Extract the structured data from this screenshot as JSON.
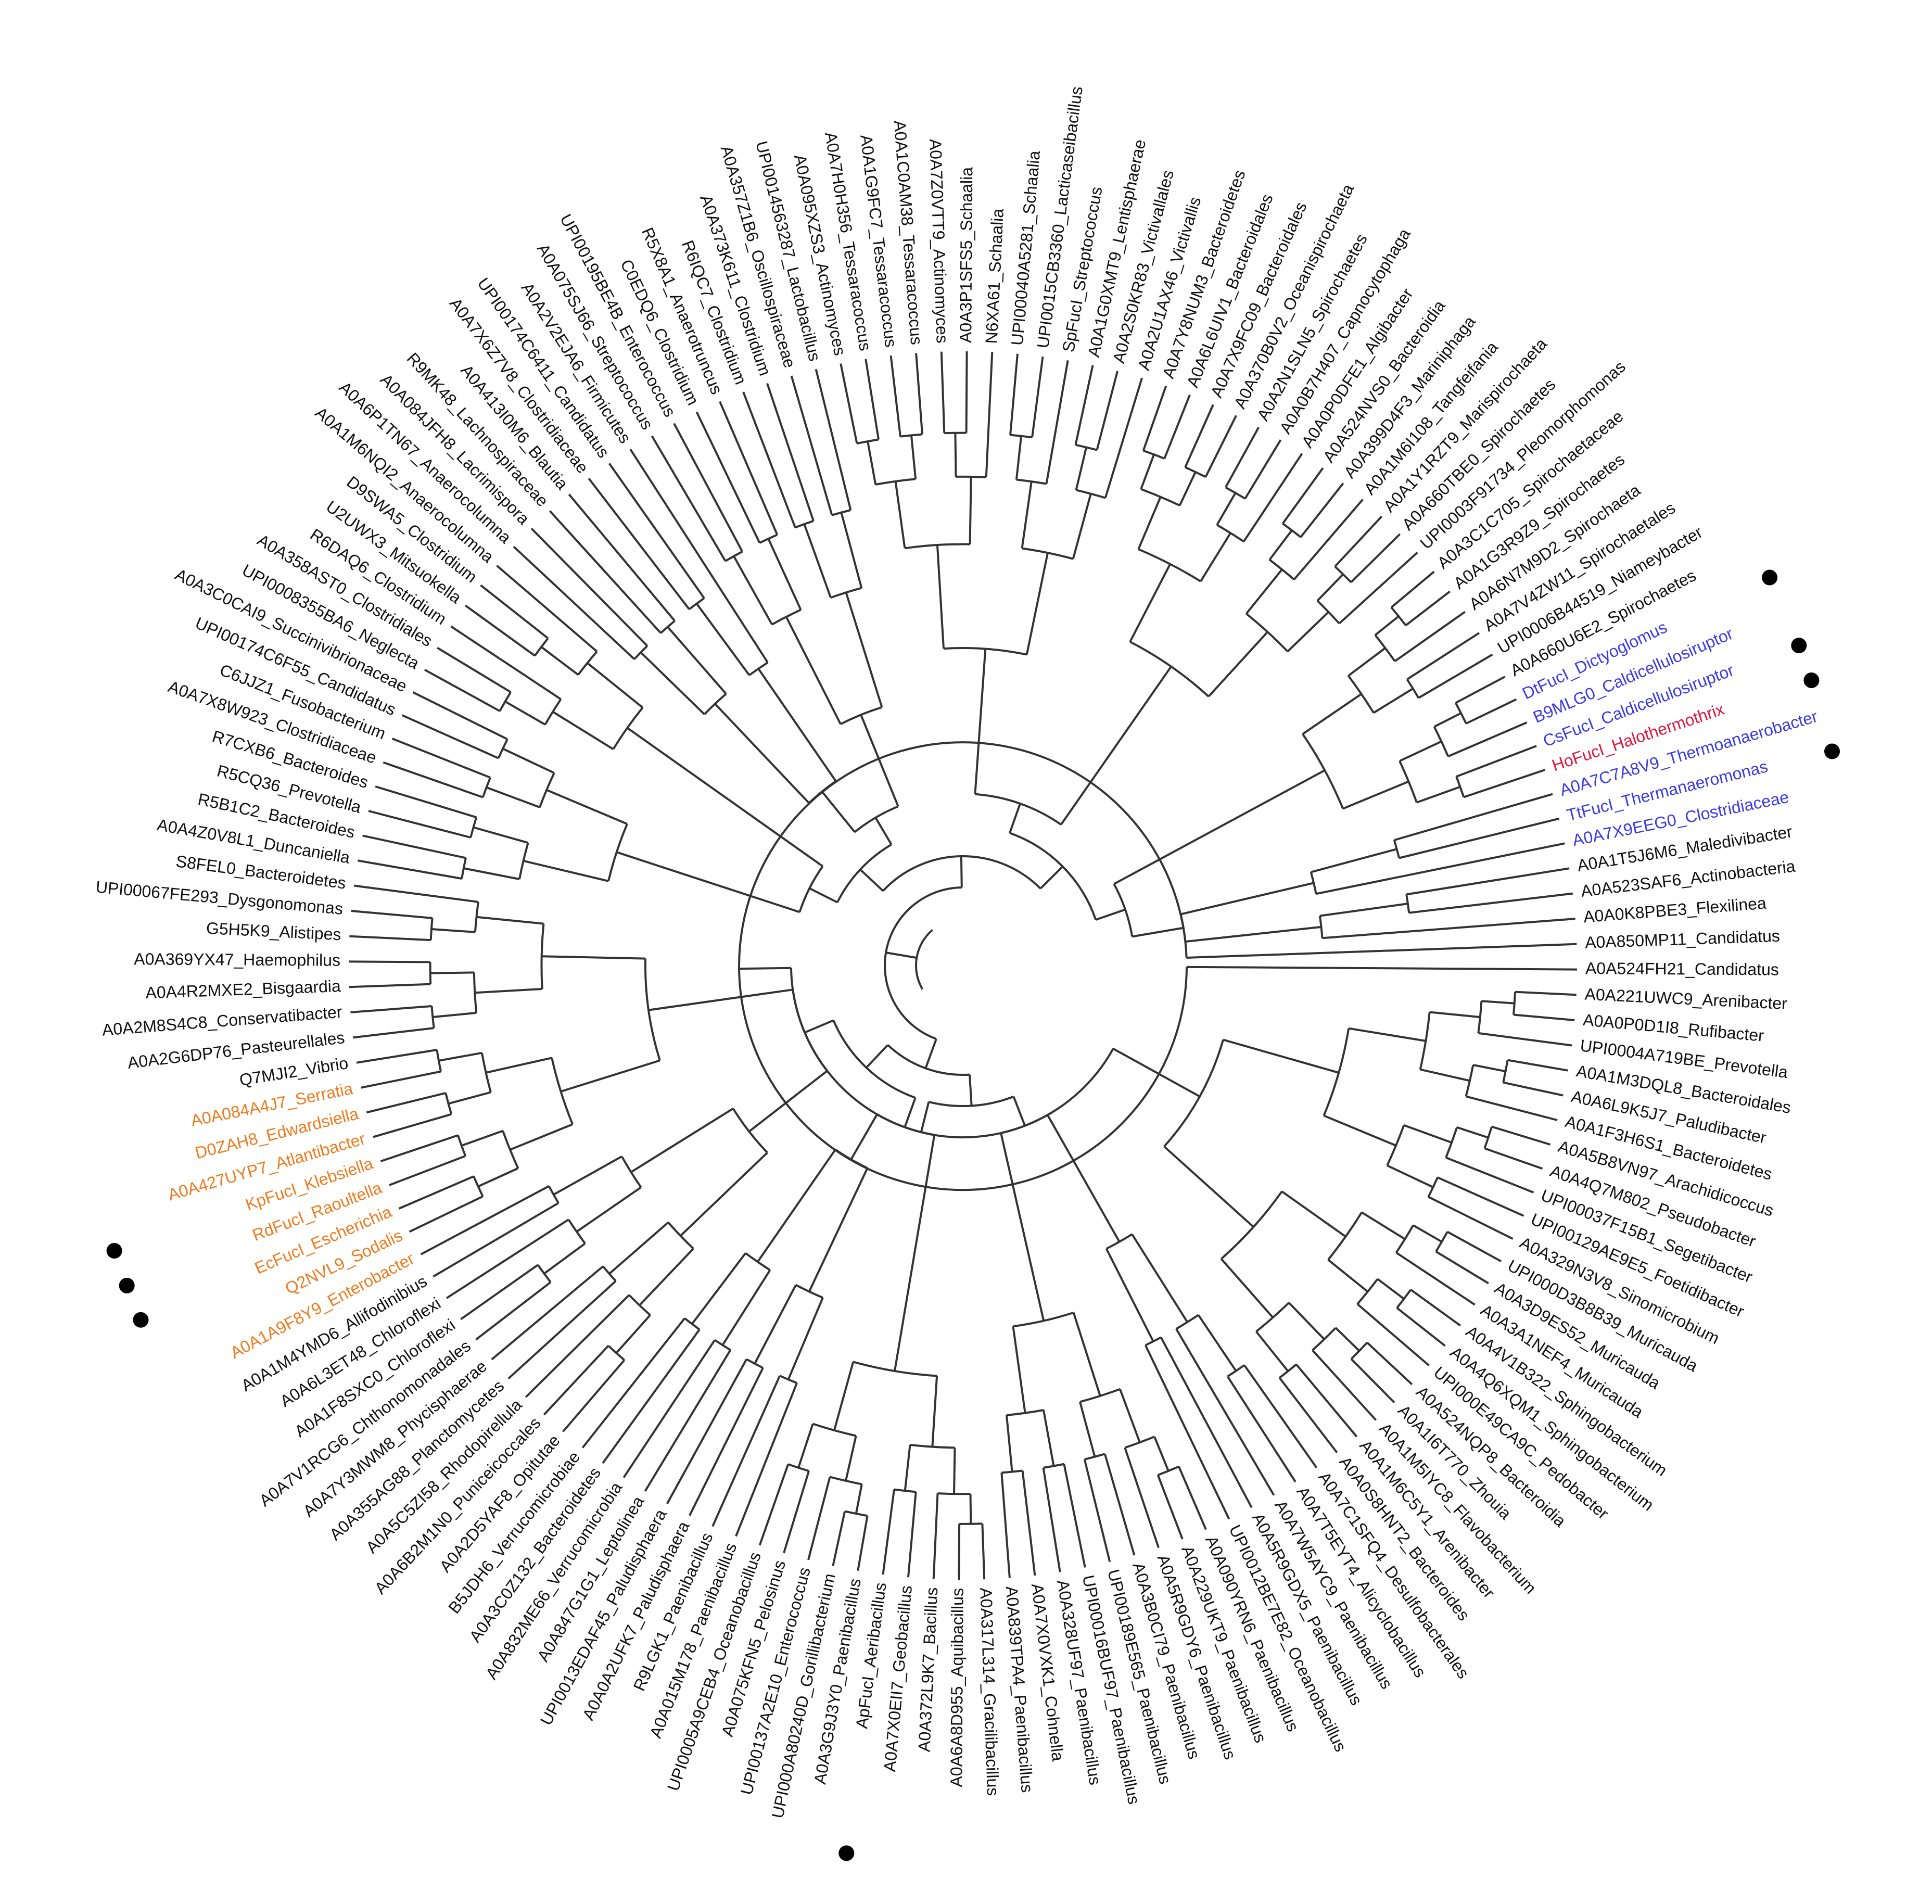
{
  "diagram": {
    "type": "circular-phylogenetic-tree",
    "colors": {
      "default": "#111111",
      "blue_group": "#3a3ae6",
      "red_group": "#e3143c",
      "orange_group": "#f07a1e",
      "branch": "#333333",
      "marker": "#000000"
    },
    "leaves": [
      {
        "label": "A0A850MP11_Candidatus",
        "group": "default",
        "marked": false
      },
      {
        "label": "A0A524FH21_Candidatus",
        "group": "default",
        "marked": false
      },
      {
        "label": "A0A221UWC9_Arenibacter",
        "group": "default",
        "marked": false
      },
      {
        "label": "A0A0P0D1I8_Rufibacter",
        "group": "default",
        "marked": false
      },
      {
        "label": "UPI0004A719BE_Prevotella",
        "group": "default",
        "marked": false
      },
      {
        "label": "A0A1M3DQL8_Bacteroidales",
        "group": "default",
        "marked": false
      },
      {
        "label": "A0A6L9K5J7_Paludibacter",
        "group": "default",
        "marked": false
      },
      {
        "label": "A0A1F3H6S1_Bacteroidetes",
        "group": "default",
        "marked": false
      },
      {
        "label": "A0A5B8VN97_Arachidicoccus",
        "group": "default",
        "marked": false
      },
      {
        "label": "A0A4Q7M802_Pseudobacter",
        "group": "default",
        "marked": false
      },
      {
        "label": "UPI00037F15B1_Segetibacter",
        "group": "default",
        "marked": false
      },
      {
        "label": "UPI00129AE9E5_Foetidibacter",
        "group": "default",
        "marked": false
      },
      {
        "label": "A0A329N3V8_Sinomicrobium",
        "group": "default",
        "marked": false
      },
      {
        "label": "UPI000D3B8B39_Muricauda",
        "group": "default",
        "marked": false
      },
      {
        "label": "A0A3D9ES52_Muricauda",
        "group": "default",
        "marked": false
      },
      {
        "label": "A0A3A1NEF4_Muricauda",
        "group": "default",
        "marked": false
      },
      {
        "label": "A0A4V1B322_Sphingobacterium",
        "group": "default",
        "marked": false
      },
      {
        "label": "A0A4Q6XQM1_Sphingobacterium",
        "group": "default",
        "marked": false
      },
      {
        "label": "UPI000E49CA9C_Pedobacter",
        "group": "default",
        "marked": false
      },
      {
        "label": "A0A524NQP8_Bacteroidia",
        "group": "default",
        "marked": false
      },
      {
        "label": "A0A1I6T770_Zhouia",
        "group": "default",
        "marked": false
      },
      {
        "label": "A0A1M5IYC8_Flavobacterium",
        "group": "default",
        "marked": false
      },
      {
        "label": "A0A1M6C5Y1_Arenibacter",
        "group": "default",
        "marked": false
      },
      {
        "label": "A0A0S8HNT2_Bacteroides",
        "group": "default",
        "marked": false
      },
      {
        "label": "A0A7C1SFQ4_Desulfobacterales",
        "group": "default",
        "marked": false
      },
      {
        "label": "A0A7T5EYT4_Alicyclobacillus",
        "group": "default",
        "marked": false
      },
      {
        "label": "A0A7W5AYC9_Paenibacillus",
        "group": "default",
        "marked": false
      },
      {
        "label": "A0A5R9GDX5_Paenibacillus",
        "group": "default",
        "marked": false
      },
      {
        "label": "UPI0012BE7E82_Oceanobacillus",
        "group": "default",
        "marked": false
      },
      {
        "label": "A0A090YRN6_Paenibacillus",
        "group": "default",
        "marked": false
      },
      {
        "label": "A0A229UKT9_Paenibacillus",
        "group": "default",
        "marked": false
      },
      {
        "label": "A0A5R9GDY6_Paenibacillus",
        "group": "default",
        "marked": false
      },
      {
        "label": "A0A3B0CI79_Paenibacillus",
        "group": "default",
        "marked": false
      },
      {
        "label": "UPI00189E565_Paenibacillus",
        "group": "default",
        "marked": false
      },
      {
        "label": "UPI00016BUF97_Paenibacillus",
        "group": "default",
        "marked": false
      },
      {
        "label": "A0A328UF97_Paenibacillus",
        "group": "default",
        "marked": false
      },
      {
        "label": "A0A7X0VXK1_Cohnella",
        "group": "default",
        "marked": false
      },
      {
        "label": "A0A839TPA4_Paenibacillus",
        "group": "default",
        "marked": false
      },
      {
        "label": "A0A317L314_Gracilibacillus",
        "group": "default",
        "marked": false
      },
      {
        "label": "A0A6A8D955_Aquibacillus",
        "group": "default",
        "marked": false
      },
      {
        "label": "A0A372L9K7_Bacillus",
        "group": "default",
        "marked": false
      },
      {
        "label": "A0A7X0EII7_Geobacillus",
        "group": "default",
        "marked": false
      },
      {
        "label": "ApFucI_Aeribacillus",
        "group": "default",
        "marked": true
      },
      {
        "label": "A0A3G9J3Y0_Paenibacillus",
        "group": "default",
        "marked": false
      },
      {
        "label": "UPI000A80240D_Gorillibacterium",
        "group": "default",
        "marked": false
      },
      {
        "label": "UPI00137A2E10_Enterococcus",
        "group": "default",
        "marked": false
      },
      {
        "label": "A0A075KFN5_Pelosinus",
        "group": "default",
        "marked": false
      },
      {
        "label": "UPI0005A9CEB4_Oceanobacillus",
        "group": "default",
        "marked": false
      },
      {
        "label": "A0A015M178_Paenibacillus",
        "group": "default",
        "marked": false
      },
      {
        "label": "R9LGK1_Paenibacillus",
        "group": "default",
        "marked": false
      },
      {
        "label": "A0A0A2UFK7_Paludisphaera",
        "group": "default",
        "marked": false
      },
      {
        "label": "UPI0013EDAF45_Paludisphaera",
        "group": "default",
        "marked": false
      },
      {
        "label": "A0A847G1G1_Leptolinea",
        "group": "default",
        "marked": false
      },
      {
        "label": "A0A832ME66_Verrucomicrobia",
        "group": "default",
        "marked": false
      },
      {
        "label": "A0A3C0Z132_Bacteroidetes",
        "group": "default",
        "marked": false
      },
      {
        "label": "B5JDH6_Verrucomicrobiae",
        "group": "default",
        "marked": false
      },
      {
        "label": "A0A2D5YAF8_Opitutae",
        "group": "default",
        "marked": false
      },
      {
        "label": "A0A6B2M1N0_Puniceicoccales",
        "group": "default",
        "marked": false
      },
      {
        "label": "A0A5C5ZI58_Rhodopirellula",
        "group": "default",
        "marked": false
      },
      {
        "label": "A0A355AG88_Planctomycetes",
        "group": "default",
        "marked": false
      },
      {
        "label": "A0A7Y3MWM8_Phycisphaerae",
        "group": "default",
        "marked": false
      },
      {
        "label": "A0A7V1RCG6_Chthonomonadales",
        "group": "default",
        "marked": false
      },
      {
        "label": "A0A1F8SXC0_Chloroflexi",
        "group": "default",
        "marked": false
      },
      {
        "label": "A0A6L3ET48_Chloroflexi",
        "group": "default",
        "marked": false
      },
      {
        "label": "A0A1M4YMD6_Allifodinibius",
        "group": "default",
        "marked": false
      },
      {
        "label": "A0A1A9F8Y9_Enterobacter",
        "group": "orange_group",
        "marked": false
      },
      {
        "label": "Q2NVL9_Sodalis",
        "group": "orange_group",
        "marked": false
      },
      {
        "label": "EcFucI_Escherichia",
        "group": "orange_group",
        "marked": true
      },
      {
        "label": "RdFucI_Raoultella",
        "group": "orange_group",
        "marked": true
      },
      {
        "label": "KpFucI_Klebsiella",
        "group": "orange_group",
        "marked": true
      },
      {
        "label": "A0A427UYP7_Atlantibacter",
        "group": "orange_group",
        "marked": false
      },
      {
        "label": "D0ZAH8_Edwardsiella",
        "group": "orange_group",
        "marked": false
      },
      {
        "label": "A0A084A4J7_Serratia",
        "group": "orange_group",
        "marked": false
      },
      {
        "label": "Q7MJI2_Vibrio",
        "group": "default",
        "marked": false
      },
      {
        "label": "A0A2G6DP76_Pasteurellales",
        "group": "default",
        "marked": false
      },
      {
        "label": "A0A2M8S4C8_Conservatibacter",
        "group": "default",
        "marked": false
      },
      {
        "label": "A0A4R2MXE2_Bisgaardia",
        "group": "default",
        "marked": false
      },
      {
        "label": "A0A369YX47_Haemophilus",
        "group": "default",
        "marked": false
      },
      {
        "label": "G5H5K9_Alistipes",
        "group": "default",
        "marked": false
      },
      {
        "label": "UPI00067FE293_Dysgonomonas",
        "group": "default",
        "marked": false
      },
      {
        "label": "S8FEL0_Bacteroidetes",
        "group": "default",
        "marked": false
      },
      {
        "label": "A0A4Z0V8L1_Duncaniella",
        "group": "default",
        "marked": false
      },
      {
        "label": "R5B1C2_Bacteroides",
        "group": "default",
        "marked": false
      },
      {
        "label": "R5CQ36_Prevotella",
        "group": "default",
        "marked": false
      },
      {
        "label": "R7CXB6_Bacteroides",
        "group": "default",
        "marked": false
      },
      {
        "label": "A0A7X8W923_Clostridiaceae",
        "group": "default",
        "marked": false
      },
      {
        "label": "C6JJZ1_Fusobacterium",
        "group": "default",
        "marked": false
      },
      {
        "label": "UPI00174C6F55_Candidatus",
        "group": "default",
        "marked": false
      },
      {
        "label": "A0A3C0CAI9_Succinivibrionaceae",
        "group": "default",
        "marked": false
      },
      {
        "label": "UPI0008355BA6_Neglecta",
        "group": "default",
        "marked": false
      },
      {
        "label": "A0A358AST0_Clostridiales",
        "group": "default",
        "marked": false
      },
      {
        "label": "R6DAQ6_Clostridium",
        "group": "default",
        "marked": false
      },
      {
        "label": "U2UWX3_Mitsuokella",
        "group": "default",
        "marked": false
      },
      {
        "label": "D9SWA5_Clostridium",
        "group": "default",
        "marked": false
      },
      {
        "label": "A0A1M6NQI2_Anaerocolumna",
        "group": "default",
        "marked": false
      },
      {
        "label": "A0A6P1TN67_Anaerocolumna",
        "group": "default",
        "marked": false
      },
      {
        "label": "A0A084JFH8_Lacrimispora",
        "group": "default",
        "marked": false
      },
      {
        "label": "R9MK48_Lachnospiraceae",
        "group": "default",
        "marked": false
      },
      {
        "label": "A0A413I0M6_Blautia",
        "group": "default",
        "marked": false
      },
      {
        "label": "A0A7X6Z7V8_Clostridiaceae",
        "group": "default",
        "marked": false
      },
      {
        "label": "UPI00174C6411_Candidatus",
        "group": "default",
        "marked": false
      },
      {
        "label": "A0A2V2EJA6_Firmicutes",
        "group": "default",
        "marked": false
      },
      {
        "label": "A0A075SJ66_Streptococcus",
        "group": "default",
        "marked": false
      },
      {
        "label": "UPI00195BE4B_Enterococcus",
        "group": "default",
        "marked": false
      },
      {
        "label": "C0EDQ6_Clostridium",
        "group": "default",
        "marked": false
      },
      {
        "label": "R5X8A1_Anaerotruncus",
        "group": "default",
        "marked": false
      },
      {
        "label": "R6IQC7_Clostridium",
        "group": "default",
        "marked": false
      },
      {
        "label": "A0A373K611_Clostridium",
        "group": "default",
        "marked": false
      },
      {
        "label": "A0A357Z1B6_Oscillospiraceae",
        "group": "default",
        "marked": false
      },
      {
        "label": "UPI0014563287_Lactobacillus",
        "group": "default",
        "marked": false
      },
      {
        "label": "A0A095XZS3_Actinomyces",
        "group": "default",
        "marked": false
      },
      {
        "label": "A0A7H0H356_Tessaracoccus",
        "group": "default",
        "marked": false
      },
      {
        "label": "A0A1G9FC7_Tessaracoccus",
        "group": "default",
        "marked": false
      },
      {
        "label": "A0A1C0AM38_Tessaracoccus",
        "group": "default",
        "marked": false
      },
      {
        "label": "A0A7Z0VTT9_Actinomyces",
        "group": "default",
        "marked": false
      },
      {
        "label": "A0A3P1SFS5_Schaalia",
        "group": "default",
        "marked": false
      },
      {
        "label": "N6XA61_Schaalia",
        "group": "default",
        "marked": false
      },
      {
        "label": "UPI00040A5281_Schaalia",
        "group": "default",
        "marked": false
      },
      {
        "label": "UPI0015CB3360_Lacticaseibacillus",
        "group": "default",
        "marked": false
      },
      {
        "label": "SpFucI_Streptococcus",
        "group": "default",
        "marked": false
      },
      {
        "label": "A0A1G0XMT9_Lentisphaerae",
        "group": "default",
        "marked": false
      },
      {
        "label": "A0A2S0KR83_Victivallales",
        "group": "default",
        "marked": false
      },
      {
        "label": "A0A2U1AX46_Victivallis",
        "group": "default",
        "marked": false
      },
      {
        "label": "A0A7Y8NUM3_Bacteroidetes",
        "group": "default",
        "marked": false
      },
      {
        "label": "A0A6L6UIV1_Bacteroidales",
        "group": "default",
        "marked": false
      },
      {
        "label": "A0A7X9FC09_Bacteroidales",
        "group": "default",
        "marked": false
      },
      {
        "label": "A0A370B0V2_Oceanispirochaeta",
        "group": "default",
        "marked": false
      },
      {
        "label": "A0A2N1SLN5_Spirochaetes",
        "group": "default",
        "marked": false
      },
      {
        "label": "A0A0B7H407_Capnocytophaga",
        "group": "default",
        "marked": false
      },
      {
        "label": "A0A0P0DFE1_Algibacter",
        "group": "default",
        "marked": false
      },
      {
        "label": "A0A524NVS0_Bacteroidia",
        "group": "default",
        "marked": false
      },
      {
        "label": "A0A399D4F3_Mariniphaga",
        "group": "default",
        "marked": false
      },
      {
        "label": "A0A1M6I108_Tangfeifania",
        "group": "default",
        "marked": false
      },
      {
        "label": "A0A1Y1RZT9_Marispirochaeta",
        "group": "default",
        "marked": false
      },
      {
        "label": "A0A660TBE0_Spirochaetes",
        "group": "default",
        "marked": false
      },
      {
        "label": "UPI0003F91734_Pleomorphomonas",
        "group": "default",
        "marked": false
      },
      {
        "label": "A0A3C1C705_Spirochaetaceae",
        "group": "default",
        "marked": false
      },
      {
        "label": "A0A1G3R9Z9_Spirochaetes",
        "group": "default",
        "marked": false
      },
      {
        "label": "A0A6N7M9D2_Spirochaeta",
        "group": "default",
        "marked": false
      },
      {
        "label": "A0A7V4ZW11_Spirochaetales",
        "group": "default",
        "marked": false
      },
      {
        "label": "UPI0006B44519_Niameybacter",
        "group": "default",
        "marked": false
      },
      {
        "label": "A0A660U6E2_Spirochaetes",
        "group": "default",
        "marked": false
      },
      {
        "label": "DtFucI_Dictyoglomus",
        "group": "blue_group",
        "marked": true
      },
      {
        "label": "B9MLG0_Caldicellulosiruptor",
        "group": "blue_group",
        "marked": false
      },
      {
        "label": "CsFucI_Caldicellulosiruptor",
        "group": "blue_group",
        "marked": true
      },
      {
        "label": "HoFucI_Halothermothrix",
        "group": "red_group",
        "marked": true
      },
      {
        "label": "A0A7C7A8V9_Thermoanaerobacter",
        "group": "blue_group",
        "marked": false
      },
      {
        "label": "TtFucI_Thermanaeromonas",
        "group": "blue_group",
        "marked": true
      },
      {
        "label": "A0A7X9EEG0_Clostridiaceae",
        "group": "blue_group",
        "marked": false
      },
      {
        "label": "A0A1T5J6M6_Maledivibacter",
        "group": "default",
        "marked": false
      },
      {
        "label": "A0A523SAF6_Actinobacteria",
        "group": "default",
        "marked": false
      },
      {
        "label": "A0A0K8PBE3_Flexilinea",
        "group": "default",
        "marked": false
      }
    ]
  }
}
